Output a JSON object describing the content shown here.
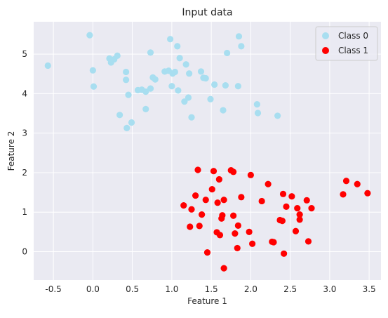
{
  "chart_data": {
    "type": "scatter",
    "title": "Input data",
    "xlabel": "Feature 1",
    "ylabel": "Feature 2",
    "xlim": [
      -0.75,
      3.65
    ],
    "ylim": [
      -0.72,
      5.82
    ],
    "xticks": [
      -0.5,
      0.0,
      0.5,
      1.0,
      1.5,
      2.0,
      2.5,
      3.0,
      3.5
    ],
    "yticks": [
      0,
      1,
      2,
      3,
      4,
      5
    ],
    "grid": true,
    "legend_position": "top-right",
    "series": [
      {
        "name": "Class 0",
        "color": "#a8def0",
        "points": [
          [
            -0.57,
            4.71
          ],
          [
            -0.04,
            5.48
          ],
          [
            0.0,
            4.59
          ],
          [
            0.01,
            4.18
          ],
          [
            0.21,
            4.89
          ],
          [
            0.23,
            4.79
          ],
          [
            0.27,
            4.87
          ],
          [
            0.31,
            4.96
          ],
          [
            0.34,
            3.46
          ],
          [
            0.42,
            4.55
          ],
          [
            0.42,
            4.35
          ],
          [
            0.43,
            3.13
          ],
          [
            0.45,
            3.97
          ],
          [
            0.49,
            3.27
          ],
          [
            0.57,
            4.09
          ],
          [
            0.62,
            4.1
          ],
          [
            0.67,
            3.61
          ],
          [
            0.67,
            4.05
          ],
          [
            0.73,
            5.04
          ],
          [
            0.73,
            4.13
          ],
          [
            0.76,
            4.41
          ],
          [
            0.79,
            4.36
          ],
          [
            0.91,
            4.56
          ],
          [
            0.96,
            4.58
          ],
          [
            0.98,
            5.38
          ],
          [
            1.0,
            4.19
          ],
          [
            1.01,
            4.51
          ],
          [
            1.04,
            4.55
          ],
          [
            1.07,
            5.2
          ],
          [
            1.08,
            4.08
          ],
          [
            1.1,
            4.9
          ],
          [
            1.16,
            3.8
          ],
          [
            1.18,
            4.74
          ],
          [
            1.21,
            3.9
          ],
          [
            1.22,
            4.51
          ],
          [
            1.25,
            3.4
          ],
          [
            1.37,
            4.56
          ],
          [
            1.4,
            4.4
          ],
          [
            1.43,
            4.39
          ],
          [
            1.49,
            3.86
          ],
          [
            1.54,
            4.23
          ],
          [
            1.65,
            3.58
          ],
          [
            1.68,
            4.21
          ],
          [
            1.7,
            5.03
          ],
          [
            1.84,
            4.19
          ],
          [
            1.85,
            5.45
          ],
          [
            1.88,
            5.2
          ],
          [
            2.08,
            3.73
          ],
          [
            2.09,
            3.51
          ],
          [
            2.34,
            3.44
          ]
        ]
      },
      {
        "name": "Class 1",
        "color": "#ff0000",
        "points": [
          [
            1.15,
            1.17
          ],
          [
            1.23,
            0.63
          ],
          [
            1.25,
            1.07
          ],
          [
            1.3,
            1.42
          ],
          [
            1.33,
            2.07
          ],
          [
            1.35,
            0.65
          ],
          [
            1.38,
            0.94
          ],
          [
            1.43,
            1.31
          ],
          [
            1.45,
            -0.02
          ],
          [
            1.51,
            1.58
          ],
          [
            1.53,
            2.04
          ],
          [
            1.57,
            0.49
          ],
          [
            1.58,
            1.24
          ],
          [
            1.6,
            1.83
          ],
          [
            1.61,
            0.42
          ],
          [
            1.63,
            0.84
          ],
          [
            1.64,
            0.92
          ],
          [
            1.66,
            -0.42
          ],
          [
            1.66,
            1.31
          ],
          [
            1.75,
            2.06
          ],
          [
            1.78,
            2.02
          ],
          [
            1.78,
            0.91
          ],
          [
            1.8,
            0.46
          ],
          [
            1.83,
            0.09
          ],
          [
            1.84,
            0.66
          ],
          [
            1.88,
            1.38
          ],
          [
            1.98,
            0.5
          ],
          [
            2.0,
            1.94
          ],
          [
            2.02,
            0.2
          ],
          [
            2.14,
            1.28
          ],
          [
            2.22,
            1.71
          ],
          [
            2.27,
            0.25
          ],
          [
            2.29,
            0.24
          ],
          [
            2.37,
            0.8
          ],
          [
            2.4,
            0.78
          ],
          [
            2.41,
            1.46
          ],
          [
            2.42,
            -0.05
          ],
          [
            2.45,
            1.14
          ],
          [
            2.52,
            1.4
          ],
          [
            2.57,
            0.52
          ],
          [
            2.59,
            1.1
          ],
          [
            2.62,
            0.94
          ],
          [
            2.62,
            0.81
          ],
          [
            2.71,
            1.3
          ],
          [
            2.73,
            0.26
          ],
          [
            2.77,
            1.1
          ],
          [
            3.17,
            1.45
          ],
          [
            3.21,
            1.79
          ],
          [
            3.35,
            1.71
          ],
          [
            3.48,
            1.48
          ]
        ]
      }
    ]
  }
}
